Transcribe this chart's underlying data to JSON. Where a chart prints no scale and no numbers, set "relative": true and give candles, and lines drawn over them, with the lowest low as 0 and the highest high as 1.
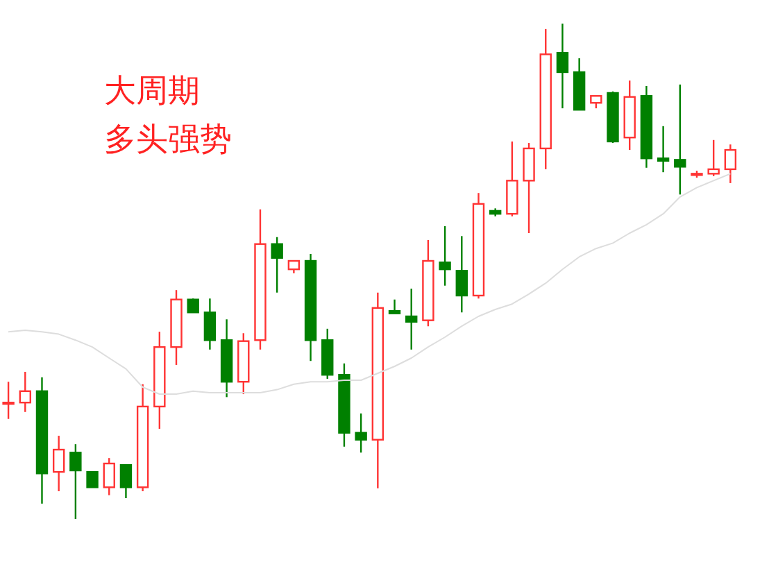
{
  "chart_data": {
    "type": "candlestick",
    "relative": true,
    "grid": false,
    "annotations": [
      "大周期",
      "多头强势"
    ],
    "categories": [
      null,
      null,
      null,
      null,
      null,
      null,
      null,
      null,
      null,
      null,
      null,
      null,
      null,
      null,
      null,
      null,
      null,
      null,
      null,
      null,
      null,
      null,
      null,
      null,
      null,
      null,
      null,
      null,
      null,
      null,
      null,
      null,
      null,
      null,
      null,
      null,
      null,
      null,
      null,
      null,
      null,
      null,
      null,
      null
    ],
    "ohlc": [
      [
        0.235,
        0.277,
        0.202,
        0.235
      ],
      [
        0.235,
        0.297,
        0.216,
        0.258
      ],
      [
        0.258,
        0.286,
        0.031,
        0.092
      ],
      [
        0.095,
        0.168,
        0.056,
        0.14
      ],
      [
        0.134,
        0.151,
        0,
        0.098
      ],
      [
        0.095,
        0.095,
        0.064,
        0.064
      ],
      [
        0.064,
        0.123,
        0.048,
        0.112
      ],
      [
        0.109,
        0.109,
        0.042,
        0.064
      ],
      [
        0.064,
        0.272,
        0.056,
        0.227
      ],
      [
        0.227,
        0.378,
        0.182,
        0.347
      ],
      [
        0.347,
        0.462,
        0.311,
        0.443
      ],
      [
        0.443,
        0.445,
        0.417,
        0.417
      ],
      [
        0.417,
        0.445,
        0.342,
        0.361
      ],
      [
        0.361,
        0.403,
        0.246,
        0.277
      ],
      [
        0.277,
        0.375,
        0.252,
        0.359
      ],
      [
        0.361,
        0.625,
        0.342,
        0.555
      ],
      [
        0.555,
        0.569,
        0.457,
        0.527
      ],
      [
        0.504,
        0.521,
        0.496,
        0.521
      ],
      [
        0.521,
        0.535,
        0.319,
        0.361
      ],
      [
        0.361,
        0.384,
        0.283,
        0.291
      ],
      [
        0.291,
        0.314,
        0.146,
        0.174
      ],
      [
        0.174,
        0.213,
        0.134,
        0.16
      ],
      [
        0.16,
        0.457,
        0.062,
        0.426
      ],
      [
        0.42,
        0.443,
        0.415,
        0.415
      ],
      [
        0.409,
        0.465,
        0.342,
        0.398
      ],
      [
        0.401,
        0.563,
        0.389,
        0.521
      ],
      [
        0.518,
        0.591,
        0.471,
        0.504
      ],
      [
        0.501,
        0.571,
        0.417,
        0.451
      ],
      [
        0.451,
        0.658,
        0.445,
        0.636
      ],
      [
        0.622,
        0.627,
        0.611,
        0.616
      ],
      [
        0.616,
        0.762,
        0.611,
        0.683
      ],
      [
        0.683,
        0.759,
        0.577,
        0.748
      ],
      [
        0.748,
        0.989,
        0.706,
        0.938
      ],
      [
        0.941,
        1,
        0.829,
        0.902
      ],
      [
        0.902,
        0.93,
        0.826,
        0.826
      ],
      [
        0.84,
        0.854,
        0.829,
        0.854
      ],
      [
        0.86,
        0.863,
        0.759,
        0.762
      ],
      [
        0.77,
        0.885,
        0.745,
        0.852
      ],
      [
        0.854,
        0.874,
        0.709,
        0.728
      ],
      [
        0.728,
        0.793,
        0.7,
        0.723
      ],
      [
        0.725,
        0.877,
        0.655,
        0.711
      ],
      [
        0.697,
        0.703,
        0.689,
        0.697
      ],
      [
        0.697,
        0.765,
        0.692,
        0.706
      ],
      [
        0.706,
        0.756,
        0.678,
        0.745
      ]
    ],
    "colors": [
      "#ff3333",
      "#ff3333",
      "#008000",
      "#ff3333",
      "#008000",
      "#008000",
      "#ff3333",
      "#008000",
      "#ff3333",
      "#ff3333",
      "#ff3333",
      "#008000",
      "#008000",
      "#008000",
      "#ff3333",
      "#ff3333",
      "#008000",
      "#ff3333",
      "#008000",
      "#008000",
      "#008000",
      "#008000",
      "#ff3333",
      "#008000",
      "#008000",
      "#ff3333",
      "#008000",
      "#008000",
      "#ff3333",
      "#008000",
      "#ff3333",
      "#ff3333",
      "#ff3333",
      "#008000",
      "#008000",
      "#ff3333",
      "#008000",
      "#ff3333",
      "#008000",
      "#008000",
      "#008000",
      "#ff3333",
      "#ff3333",
      "#ff3333"
    ],
    "series": [
      {
        "type": "line",
        "color": "#dddddd",
        "values": [
          0.378,
          0.381,
          0.378,
          0.373,
          0.361,
          0.347,
          0.325,
          0.303,
          0.266,
          0.252,
          0.252,
          0.258,
          0.255,
          0.255,
          0.255,
          0.255,
          0.261,
          0.272,
          0.277,
          0.277,
          0.28,
          0.28,
          0.294,
          0.308,
          0.325,
          0.347,
          0.367,
          0.389,
          0.409,
          0.423,
          0.434,
          0.454,
          0.476,
          0.504,
          0.529,
          0.546,
          0.557,
          0.577,
          0.594,
          0.616,
          0.65,
          0.669,
          0.683,
          0.697
        ]
      }
    ]
  }
}
